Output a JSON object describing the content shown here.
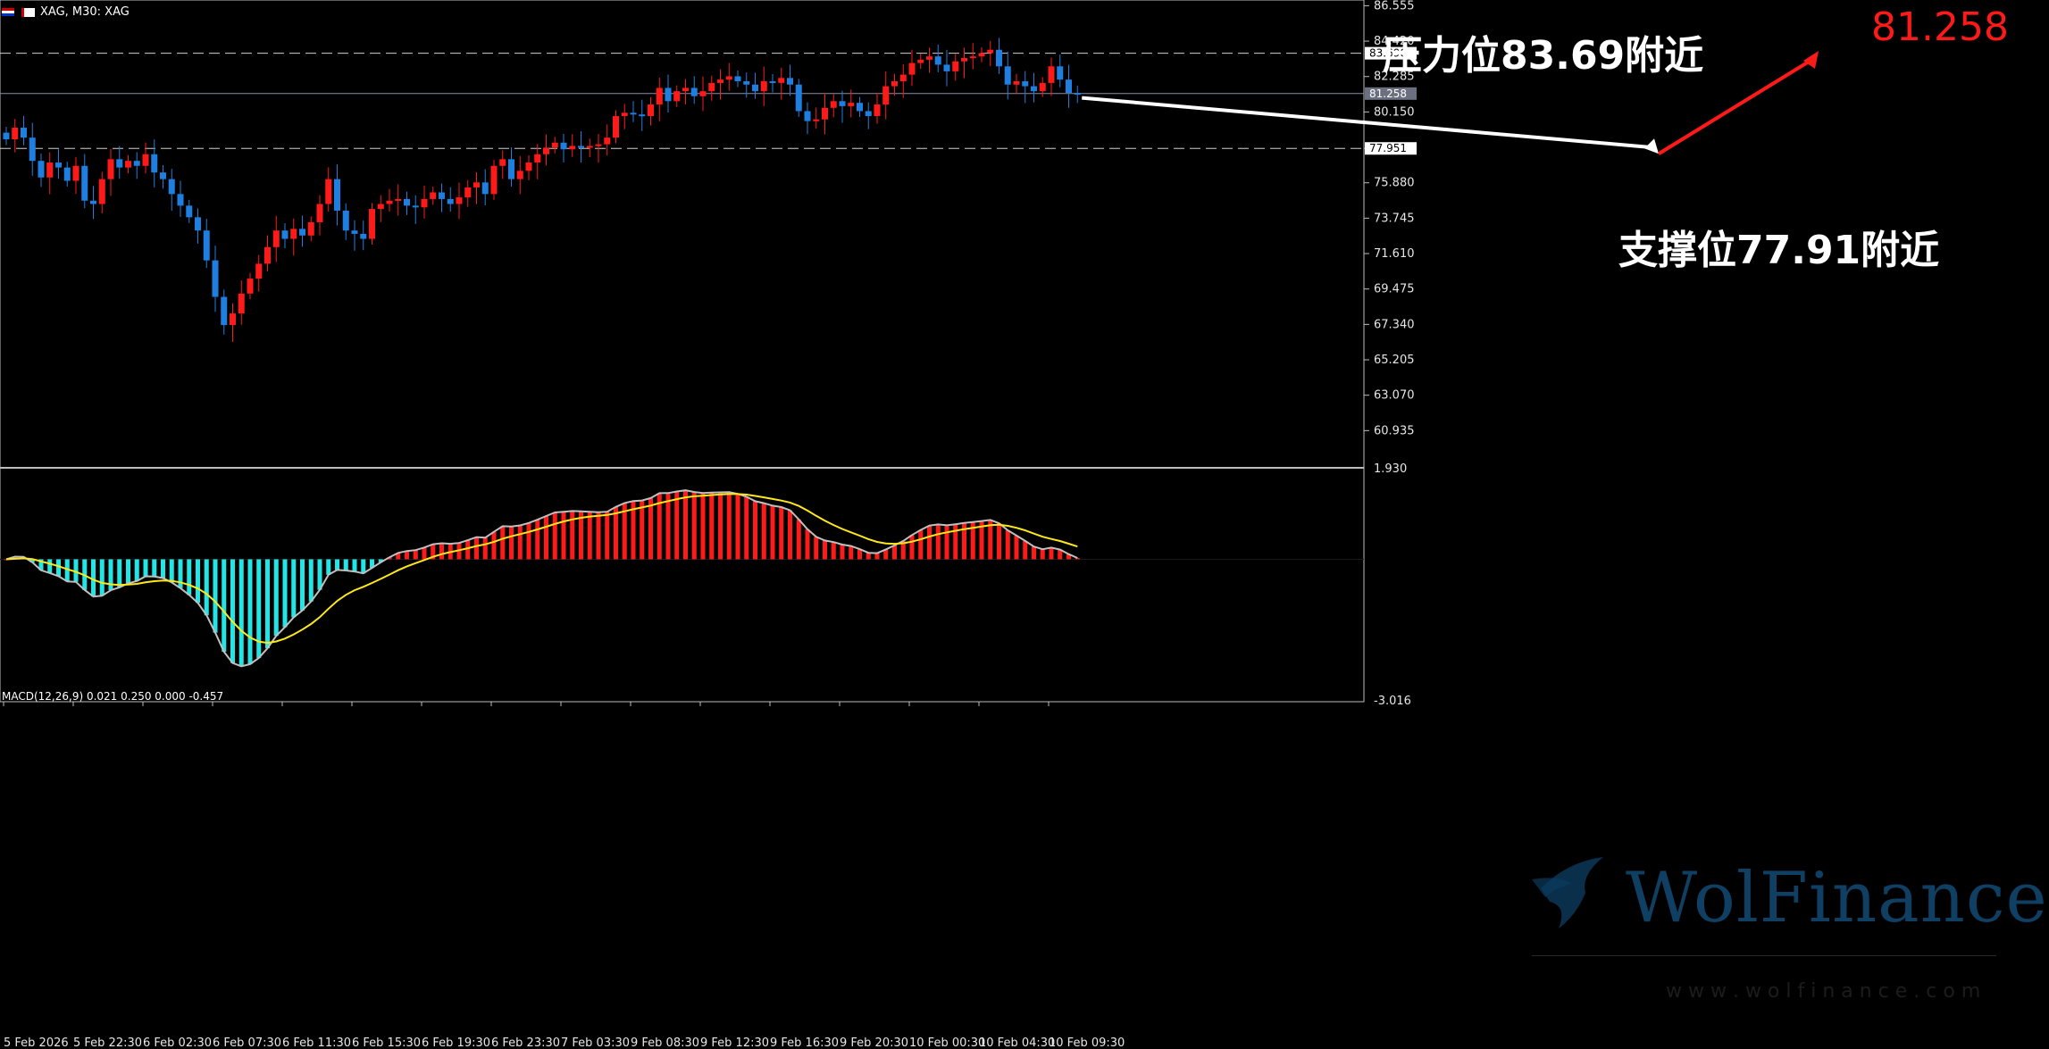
{
  "header": {
    "symbol_info": "XAG, M30:  XAG",
    "macd_info": "MACD(12,26,9) 0.021 0.250 0.000 -0.457"
  },
  "annotations": {
    "resistance": "压力位83.69附近",
    "support": "支撑位77.91附近",
    "target_price": "81.258"
  },
  "watermark": {
    "brand": "WolFinance",
    "site": "w w w . w o l f i n a n c e . c o m"
  },
  "colors": {
    "bull": "#ff1a1a",
    "bear": "#1e7fe0",
    "macd_pos": "#ff1a1a",
    "macd_neg": "#22e6e6",
    "macd_line": "#c0c0c0",
    "signal_line": "#ffe81a",
    "arrow_red": "#ff1a1a",
    "arrow_white": "#ffffff"
  },
  "chart_data": [
    {
      "type": "candlestick",
      "title": "XAG, M30",
      "ylim": [
        58.8,
        86.9
      ],
      "y_ticks": [
        "86.555",
        "84.420",
        "82.285",
        "80.150",
        "77.951",
        "75.880",
        "73.745",
        "71.610",
        "69.475",
        "67.340",
        "65.205",
        "63.070",
        "60.935"
      ],
      "price_labels": [
        "83.690",
        "81.258",
        "77.951"
      ],
      "levels": [
        {
          "value": 83.69,
          "style": "dashed"
        },
        {
          "value": 81.258,
          "style": "solid"
        },
        {
          "value": 77.951,
          "style": "dashed"
        }
      ],
      "x_labels": [
        "5 Feb 2026",
        "5 Feb 22:30",
        "6 Feb 02:30",
        "6 Feb 07:30",
        "6 Feb 11:30",
        "6 Feb 15:30",
        "6 Feb 19:30",
        "6 Feb 23:30",
        "7 Feb 03:30",
        "9 Feb 08:30",
        "9 Feb 12:30",
        "9 Feb 16:30",
        "9 Feb 20:30",
        "10 Feb 00:30",
        "10 Feb 04:30",
        "10 Feb 09:30"
      ],
      "closes": [
        78.5,
        79.2,
        78.6,
        77.2,
        76.2,
        77.1,
        76.8,
        76.0,
        76.9,
        74.8,
        74.6,
        76.1,
        77.3,
        76.8,
        77.2,
        76.9,
        77.6,
        76.5,
        76.1,
        75.2,
        74.5,
        73.8,
        73.0,
        71.2,
        69.0,
        67.3,
        68.0,
        69.2,
        70.1,
        71.0,
        72.0,
        73.0,
        72.5,
        73.1,
        72.7,
        73.5,
        74.6,
        76.1,
        74.2,
        73.0,
        72.8,
        72.5,
        74.3,
        74.6,
        74.8,
        74.9,
        74.5,
        74.4,
        74.9,
        75.3,
        74.9,
        74.6,
        75.0,
        75.6,
        75.9,
        75.2,
        76.9,
        77.3,
        76.1,
        76.6,
        77.1,
        77.6,
        78.0,
        78.3,
        77.9,
        78.1,
        78.0,
        78.1,
        78.2,
        78.6,
        79.9,
        80.1,
        80.0,
        79.9,
        80.6,
        81.6,
        80.8,
        81.4,
        81.6,
        81.1,
        81.4,
        81.9,
        82.1,
        82.3,
        82.0,
        81.8,
        81.4,
        82.0,
        81.9,
        82.2,
        81.8,
        80.2,
        79.6,
        79.7,
        80.4,
        80.8,
        80.5,
        80.7,
        80.2,
        79.9,
        80.6,
        81.7,
        82.0,
        82.4,
        83.1,
        83.3,
        83.5,
        83.0,
        82.6,
        83.2,
        83.4,
        83.5,
        83.7,
        83.9,
        82.9,
        81.8,
        82.0,
        81.7,
        81.4,
        81.9,
        82.9,
        82.1,
        81.3,
        81.258
      ],
      "macd": {
        "indicator": "MACD(12,26,9)",
        "ylim": [
          -3.016,
          1.93
        ],
        "y_ticks": [
          "1.930",
          "-3.016"
        ],
        "note": "histogram and signal computed from closes with EMA 12/26/9"
      }
    }
  ]
}
